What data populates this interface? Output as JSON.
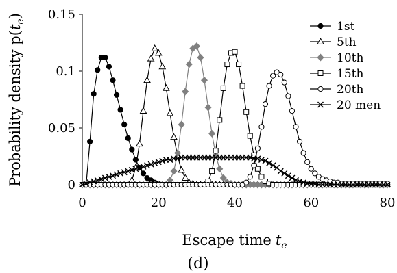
{
  "chart_data": {
    "type": "line",
    "panel_label": "(d)",
    "xlabel": "Escape time",
    "xlabel_sym": "t",
    "xlabel_sub": "e",
    "ylabel": "Probability density p(",
    "ylabel_sym": "t",
    "ylabel_sub": "e",
    "ylabel_close": ")",
    "xlim": [
      0,
      80
    ],
    "ylim": [
      0,
      0.15
    ],
    "x_ticks": [
      0,
      20,
      40,
      60,
      80
    ],
    "y_ticks": [
      0,
      0.05,
      0.1,
      0.15
    ],
    "y_tick_labels": [
      "0",
      "0.05",
      "0.1",
      "0.15"
    ],
    "legend_position": "top-right",
    "grid": false,
    "series": [
      {
        "name": "1st",
        "marker": "filled-circle",
        "color": "#000000",
        "x": [
          0,
          1,
          2,
          3,
          4,
          5,
          6,
          7,
          8,
          9,
          10,
          11,
          12,
          13,
          14,
          15,
          16,
          17,
          18,
          19,
          20,
          21,
          22,
          23,
          24,
          25,
          26,
          27,
          28,
          29,
          30,
          31,
          32,
          33,
          34,
          35,
          36,
          37,
          38,
          39,
          40,
          41,
          42,
          43,
          44,
          45,
          46,
          47,
          48,
          49,
          50,
          51,
          52,
          53,
          54,
          55,
          56,
          57,
          58,
          59,
          60,
          61,
          62,
          63,
          64,
          65,
          66,
          67,
          68,
          69,
          70,
          71,
          72,
          73,
          74,
          75,
          76,
          77,
          78,
          79,
          80
        ],
        "y": [
          0,
          0,
          0.038,
          0.08,
          0.101,
          0.112,
          0.112,
          0.104,
          0.092,
          0.079,
          0.066,
          0.053,
          0.041,
          0.031,
          0.022,
          0.015,
          0.01,
          0.006,
          0.004,
          0.002,
          0.001,
          0,
          0,
          0,
          0,
          0,
          0,
          0,
          0,
          0,
          0,
          0,
          0,
          0,
          0,
          0,
          0,
          0,
          0,
          0,
          0,
          0,
          0,
          0,
          0,
          0,
          0,
          0,
          0,
          0,
          0,
          0,
          0,
          0,
          0,
          0,
          0,
          0,
          0,
          0,
          0,
          0,
          0,
          0,
          0,
          0,
          0,
          0,
          0,
          0,
          0,
          0,
          0,
          0,
          0,
          0,
          0,
          0,
          0,
          0,
          0
        ]
      },
      {
        "name": "5th",
        "marker": "open-triangle",
        "color": "#000000",
        "x": [
          0,
          1,
          2,
          3,
          4,
          5,
          6,
          7,
          8,
          9,
          10,
          11,
          12,
          13,
          14,
          15,
          16,
          17,
          18,
          19,
          20,
          21,
          22,
          23,
          24,
          25,
          26,
          27,
          28,
          29,
          30,
          31,
          32,
          33,
          34,
          35,
          36,
          37,
          38,
          39,
          40,
          41,
          42,
          43,
          44,
          45,
          46,
          47,
          48,
          49,
          50,
          51,
          52,
          53,
          54,
          55,
          56,
          57,
          58,
          59,
          60,
          61,
          62,
          63,
          64,
          65,
          66,
          67,
          68,
          69,
          70,
          71,
          72,
          73,
          74,
          75,
          76,
          77,
          78,
          79,
          80
        ],
        "y": [
          0,
          0,
          0,
          0,
          0,
          0,
          0,
          0,
          0,
          0,
          0,
          0,
          0,
          0.004,
          0.015,
          0.036,
          0.065,
          0.092,
          0.111,
          0.12,
          0.116,
          0.104,
          0.085,
          0.063,
          0.042,
          0.025,
          0.013,
          0.006,
          0.002,
          0.001,
          0,
          0,
          0,
          0,
          0,
          0,
          0,
          0,
          0,
          0,
          0,
          0,
          0,
          0,
          0,
          0,
          0,
          0,
          0,
          0,
          0,
          0,
          0,
          0,
          0,
          0,
          0,
          0,
          0,
          0,
          0,
          0,
          0,
          0,
          0,
          0,
          0,
          0,
          0,
          0,
          0,
          0,
          0,
          0,
          0,
          0,
          0,
          0,
          0,
          0,
          0
        ]
      },
      {
        "name": "10th",
        "marker": "filled-diamond",
        "color": "#808080",
        "x": [
          0,
          1,
          2,
          3,
          4,
          5,
          6,
          7,
          8,
          9,
          10,
          11,
          12,
          13,
          14,
          15,
          16,
          17,
          18,
          19,
          20,
          21,
          22,
          23,
          24,
          25,
          26,
          27,
          28,
          29,
          30,
          31,
          32,
          33,
          34,
          35,
          36,
          37,
          38,
          39,
          40,
          41,
          42,
          43,
          44,
          45,
          46,
          47,
          48,
          49,
          50,
          51,
          52,
          53,
          54,
          55,
          56,
          57,
          58,
          59,
          60,
          61,
          62,
          63,
          64,
          65,
          66,
          67,
          68,
          69,
          70,
          71,
          72,
          73,
          74,
          75,
          76,
          77,
          78,
          79,
          80
        ],
        "y": [
          0,
          0,
          0,
          0,
          0,
          0,
          0,
          0,
          0,
          0,
          0,
          0,
          0,
          0,
          0,
          0,
          0,
          0,
          0,
          0,
          0,
          0,
          0,
          0.004,
          0.012,
          0.028,
          0.053,
          0.082,
          0.106,
          0.12,
          0.122,
          0.112,
          0.092,
          0.068,
          0.045,
          0.026,
          0.014,
          0.006,
          0.002,
          0.001,
          0,
          0,
          0,
          0,
          0,
          0,
          0,
          0,
          0,
          0,
          0,
          0,
          0,
          0,
          0,
          0,
          0,
          0,
          0,
          0,
          0,
          0,
          0,
          0,
          0,
          0,
          0,
          0,
          0,
          0,
          0,
          0,
          0,
          0,
          0,
          0,
          0,
          0,
          0,
          0,
          0
        ]
      },
      {
        "name": "15th",
        "marker": "open-square",
        "color": "#000000",
        "x": [
          0,
          1,
          2,
          3,
          4,
          5,
          6,
          7,
          8,
          9,
          10,
          11,
          12,
          13,
          14,
          15,
          16,
          17,
          18,
          19,
          20,
          21,
          22,
          23,
          24,
          25,
          26,
          27,
          28,
          29,
          30,
          31,
          32,
          33,
          34,
          35,
          36,
          37,
          38,
          39,
          40,
          41,
          42,
          43,
          44,
          45,
          46,
          47,
          48,
          49,
          50,
          51,
          52,
          53,
          54,
          55,
          56,
          57,
          58,
          59,
          60,
          61,
          62,
          63,
          64,
          65,
          66,
          67,
          68,
          69,
          70,
          71,
          72,
          73,
          74,
          75,
          76,
          77,
          78,
          79,
          80
        ],
        "y": [
          0,
          0,
          0,
          0,
          0,
          0,
          0,
          0,
          0,
          0,
          0,
          0,
          0,
          0,
          0,
          0,
          0,
          0,
          0,
          0,
          0,
          0,
          0,
          0,
          0,
          0,
          0,
          0,
          0,
          0,
          0,
          0,
          0,
          0.003,
          0.012,
          0.03,
          0.057,
          0.085,
          0.106,
          0.116,
          0.117,
          0.106,
          0.087,
          0.064,
          0.043,
          0.026,
          0.014,
          0.007,
          0.003,
          0.001,
          0,
          0,
          0,
          0,
          0,
          0,
          0,
          0,
          0,
          0,
          0,
          0,
          0,
          0,
          0,
          0,
          0,
          0,
          0,
          0,
          0,
          0,
          0,
          0,
          0,
          0,
          0,
          0,
          0,
          0,
          0
        ]
      },
      {
        "name": "20th",
        "marker": "open-circle",
        "color": "#000000",
        "x": [
          0,
          1,
          2,
          3,
          4,
          5,
          6,
          7,
          8,
          9,
          10,
          11,
          12,
          13,
          14,
          15,
          16,
          17,
          18,
          19,
          20,
          21,
          22,
          23,
          24,
          25,
          26,
          27,
          28,
          29,
          30,
          31,
          32,
          33,
          34,
          35,
          36,
          37,
          38,
          39,
          40,
          41,
          42,
          43,
          44,
          45,
          46,
          47,
          48,
          49,
          50,
          51,
          52,
          53,
          54,
          55,
          56,
          57,
          58,
          59,
          60,
          61,
          62,
          63,
          64,
          65,
          66,
          67,
          68,
          69,
          70,
          71,
          72,
          73,
          74,
          75,
          76,
          77,
          78,
          79,
          80
        ],
        "y": [
          0,
          0,
          0,
          0,
          0,
          0,
          0,
          0,
          0,
          0,
          0,
          0,
          0,
          0,
          0,
          0,
          0,
          0,
          0,
          0,
          0,
          0,
          0,
          0,
          0,
          0,
          0,
          0,
          0,
          0,
          0,
          0,
          0,
          0,
          0,
          0,
          0,
          0,
          0,
          0,
          0,
          0,
          0,
          0.002,
          0.007,
          0.017,
          0.032,
          0.051,
          0.071,
          0.087,
          0.096,
          0.099,
          0.097,
          0.09,
          0.078,
          0.065,
          0.051,
          0.038,
          0.028,
          0.02,
          0.014,
          0.01,
          0.007,
          0.005,
          0.004,
          0.003,
          0.002,
          0.002,
          0.001,
          0.001,
          0.001,
          0.001,
          0.001,
          0.001,
          0.001,
          0.001,
          0.001,
          0.001,
          0.001,
          0.001,
          0.001
        ]
      },
      {
        "name": "20 men",
        "marker": "x",
        "color": "#000000",
        "x": [
          0,
          1,
          2,
          3,
          4,
          5,
          6,
          7,
          8,
          9,
          10,
          11,
          12,
          13,
          14,
          15,
          16,
          17,
          18,
          19,
          20,
          21,
          22,
          23,
          24,
          25,
          26,
          27,
          28,
          29,
          30,
          31,
          32,
          33,
          34,
          35,
          36,
          37,
          38,
          39,
          40,
          41,
          42,
          43,
          44,
          45,
          46,
          47,
          48,
          49,
          50,
          51,
          52,
          53,
          54,
          55,
          56,
          57,
          58,
          59,
          60,
          61,
          62,
          63,
          64,
          65,
          66,
          67,
          68,
          69,
          70,
          71,
          72,
          73,
          74,
          75,
          76,
          77,
          78,
          79,
          80
        ],
        "y": [
          0,
          0.001,
          0.002,
          0.003,
          0.004,
          0.005,
          0.006,
          0.007,
          0.008,
          0.009,
          0.01,
          0.011,
          0.012,
          0.013,
          0.014,
          0.015,
          0.016,
          0.017,
          0.018,
          0.019,
          0.02,
          0.021,
          0.022,
          0.022,
          0.023,
          0.023,
          0.024,
          0.024,
          0.024,
          0.024,
          0.024,
          0.024,
          0.024,
          0.024,
          0.024,
          0.024,
          0.024,
          0.024,
          0.024,
          0.024,
          0.024,
          0.024,
          0.024,
          0.024,
          0.024,
          0.023,
          0.023,
          0.022,
          0.021,
          0.019,
          0.017,
          0.015,
          0.012,
          0.01,
          0.008,
          0.006,
          0.004,
          0.003,
          0.002,
          0.001,
          0.001,
          0.001,
          0,
          0,
          0,
          0,
          0,
          0,
          0,
          0,
          0,
          0,
          0,
          0,
          0,
          0,
          0,
          0,
          0,
          0,
          0
        ]
      }
    ]
  }
}
